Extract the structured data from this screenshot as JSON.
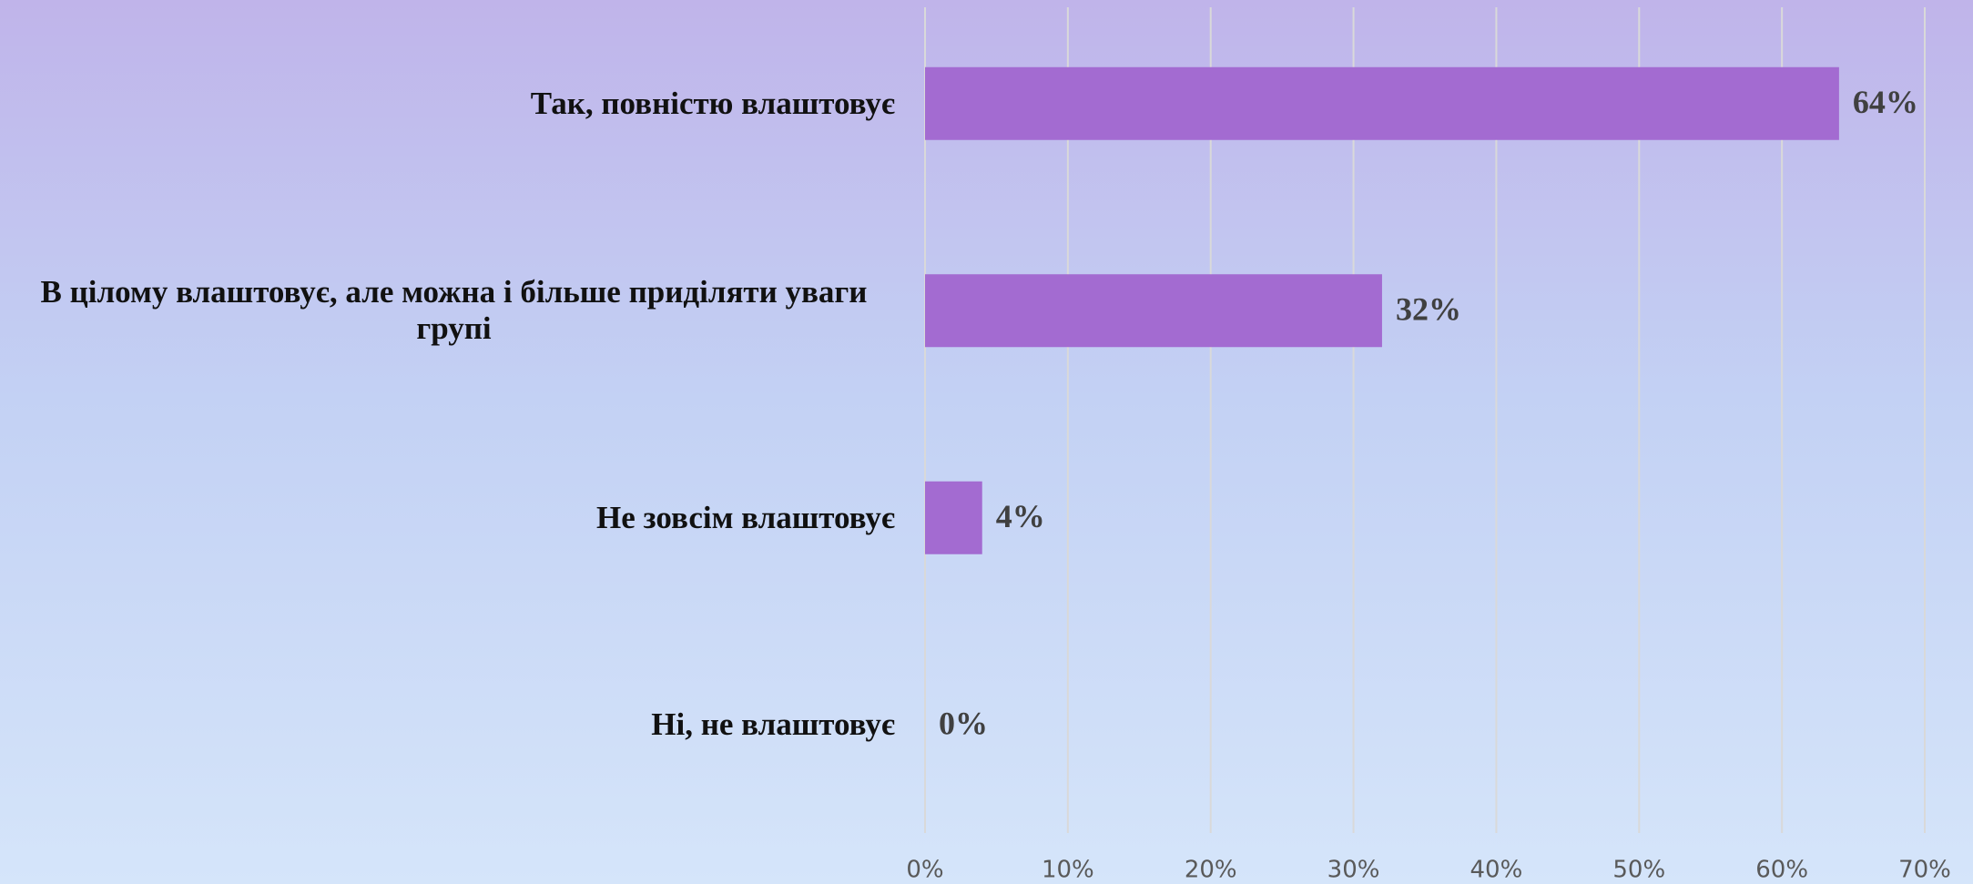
{
  "chart_data": {
    "type": "bar",
    "orientation": "horizontal",
    "categories": [
      "Так, повністю влаштовує",
      "В цілому влаштовує, але можна і більше приділяти уваги групі",
      "Не зовсім влаштовує",
      "Ні, не влаштовує"
    ],
    "values": [
      64,
      32,
      4,
      0
    ],
    "value_labels": [
      "64%",
      "32%",
      "4%",
      "0%"
    ],
    "color": "#a36bd1",
    "xlim": [
      0,
      70
    ],
    "xticks": [
      {
        "value": 0,
        "label": "0%"
      },
      {
        "value": 10,
        "label": "10%"
      },
      {
        "value": 20,
        "label": "20%"
      },
      {
        "value": 30,
        "label": "30%"
      },
      {
        "value": 40,
        "label": "40%"
      },
      {
        "value": 50,
        "label": "50%"
      },
      {
        "value": 60,
        "label": "60%"
      },
      {
        "value": 70,
        "label": "70%"
      }
    ],
    "grid": true
  }
}
